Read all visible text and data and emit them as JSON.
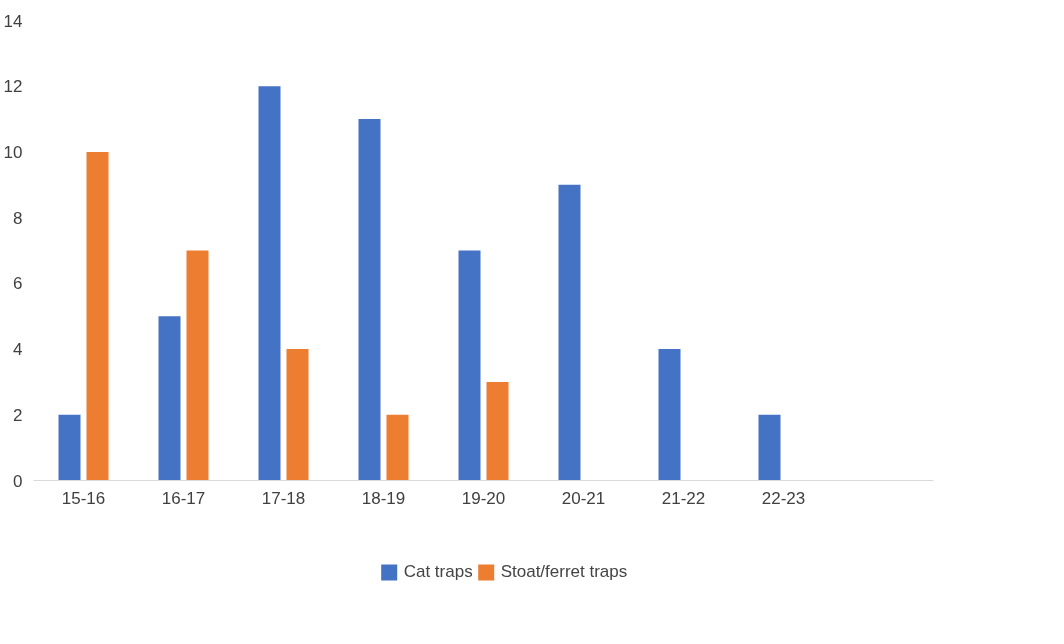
{
  "chart_data": {
    "type": "bar",
    "categories": [
      "15-16",
      "16-17",
      "17-18",
      "18-19",
      "19-20",
      "20-21",
      "21-22",
      "22-23",
      null
    ],
    "series": [
      {
        "name": "Cat traps",
        "color": "#4472c4",
        "values": [
          2,
          5,
          12,
          11,
          7,
          9,
          4,
          2,
          null
        ]
      },
      {
        "name": "Stoat/ferret traps",
        "color": "#ed7d31",
        "values": [
          10,
          7,
          4,
          2,
          3,
          null,
          null,
          null,
          null
        ]
      }
    ],
    "ylim": [
      0,
      14
    ],
    "yticks": [
      0,
      2,
      4,
      6,
      8,
      10,
      12,
      14
    ],
    "grid": false,
    "legend": "bottom"
  }
}
